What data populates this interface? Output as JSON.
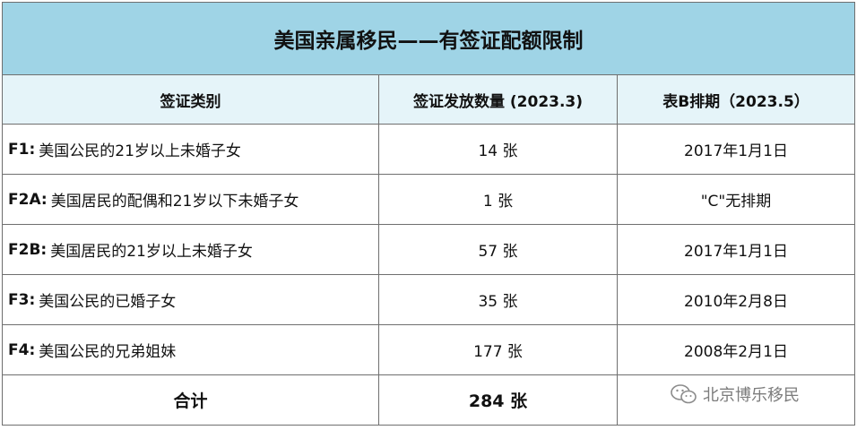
{
  "title": "美国亲属移民——有签证配额限制",
  "headers": [
    "签证类别",
    "签证发放数量 (2023.3)",
    "表B排期（2023.5）"
  ],
  "rows": [
    {
      "code": "F1:",
      "desc": "美国公民的21岁以上未婚子女",
      "count": "14 张",
      "date": "2017年1月1日"
    },
    {
      "code": "F2A:",
      "desc": "美国居民的配偶和21岁以下未婚子女",
      "count": "1 张",
      "date": "\"C\"无排期"
    },
    {
      "code": "F2B:",
      "desc": "美国居民的21岁以上未婚子女",
      "count": "57 张",
      "date": "2017年1月1日"
    },
    {
      "code": "F3:",
      "desc": "美国公民的已婚子女",
      "count": "35 张",
      "date": "2010年2月8日"
    },
    {
      "code": "F4:",
      "desc": "美国公民的兄弟姐妹",
      "count": "177 张",
      "date": "2008年2月1日"
    }
  ],
  "total": {
    "label": "合计",
    "count": "284 张"
  },
  "watermark": {
    "text": "北京博乐移民",
    "icon": "wechat-icon"
  }
}
